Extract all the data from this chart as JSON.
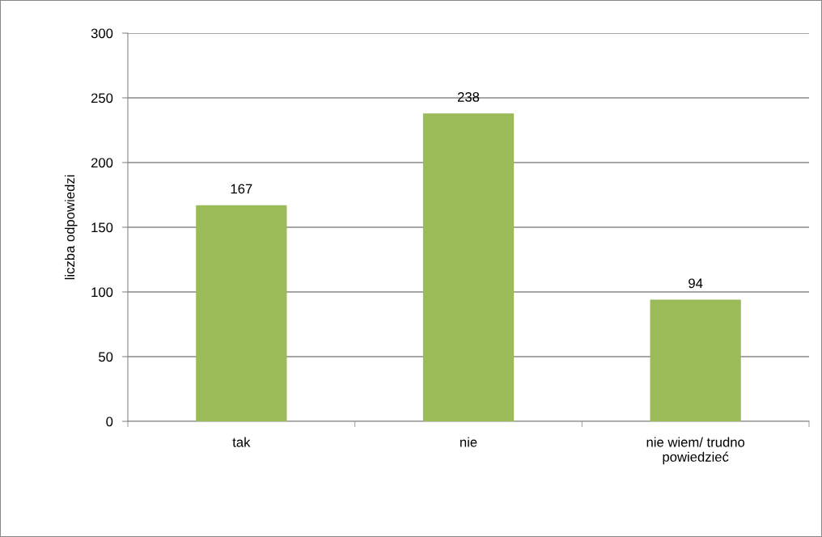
{
  "chart_data": {
    "type": "bar",
    "ylabel": "liczba odpowiedzi",
    "categories": [
      "tak",
      "nie",
      "nie wiem/ trudno powiedzieć"
    ],
    "values": [
      167,
      238,
      94
    ],
    "color": "#9bbb59",
    "ylim": [
      0,
      300
    ],
    "yticks": [
      0,
      50,
      100,
      150,
      200,
      250,
      300
    ],
    "grid": "y",
    "data_labels": true
  }
}
